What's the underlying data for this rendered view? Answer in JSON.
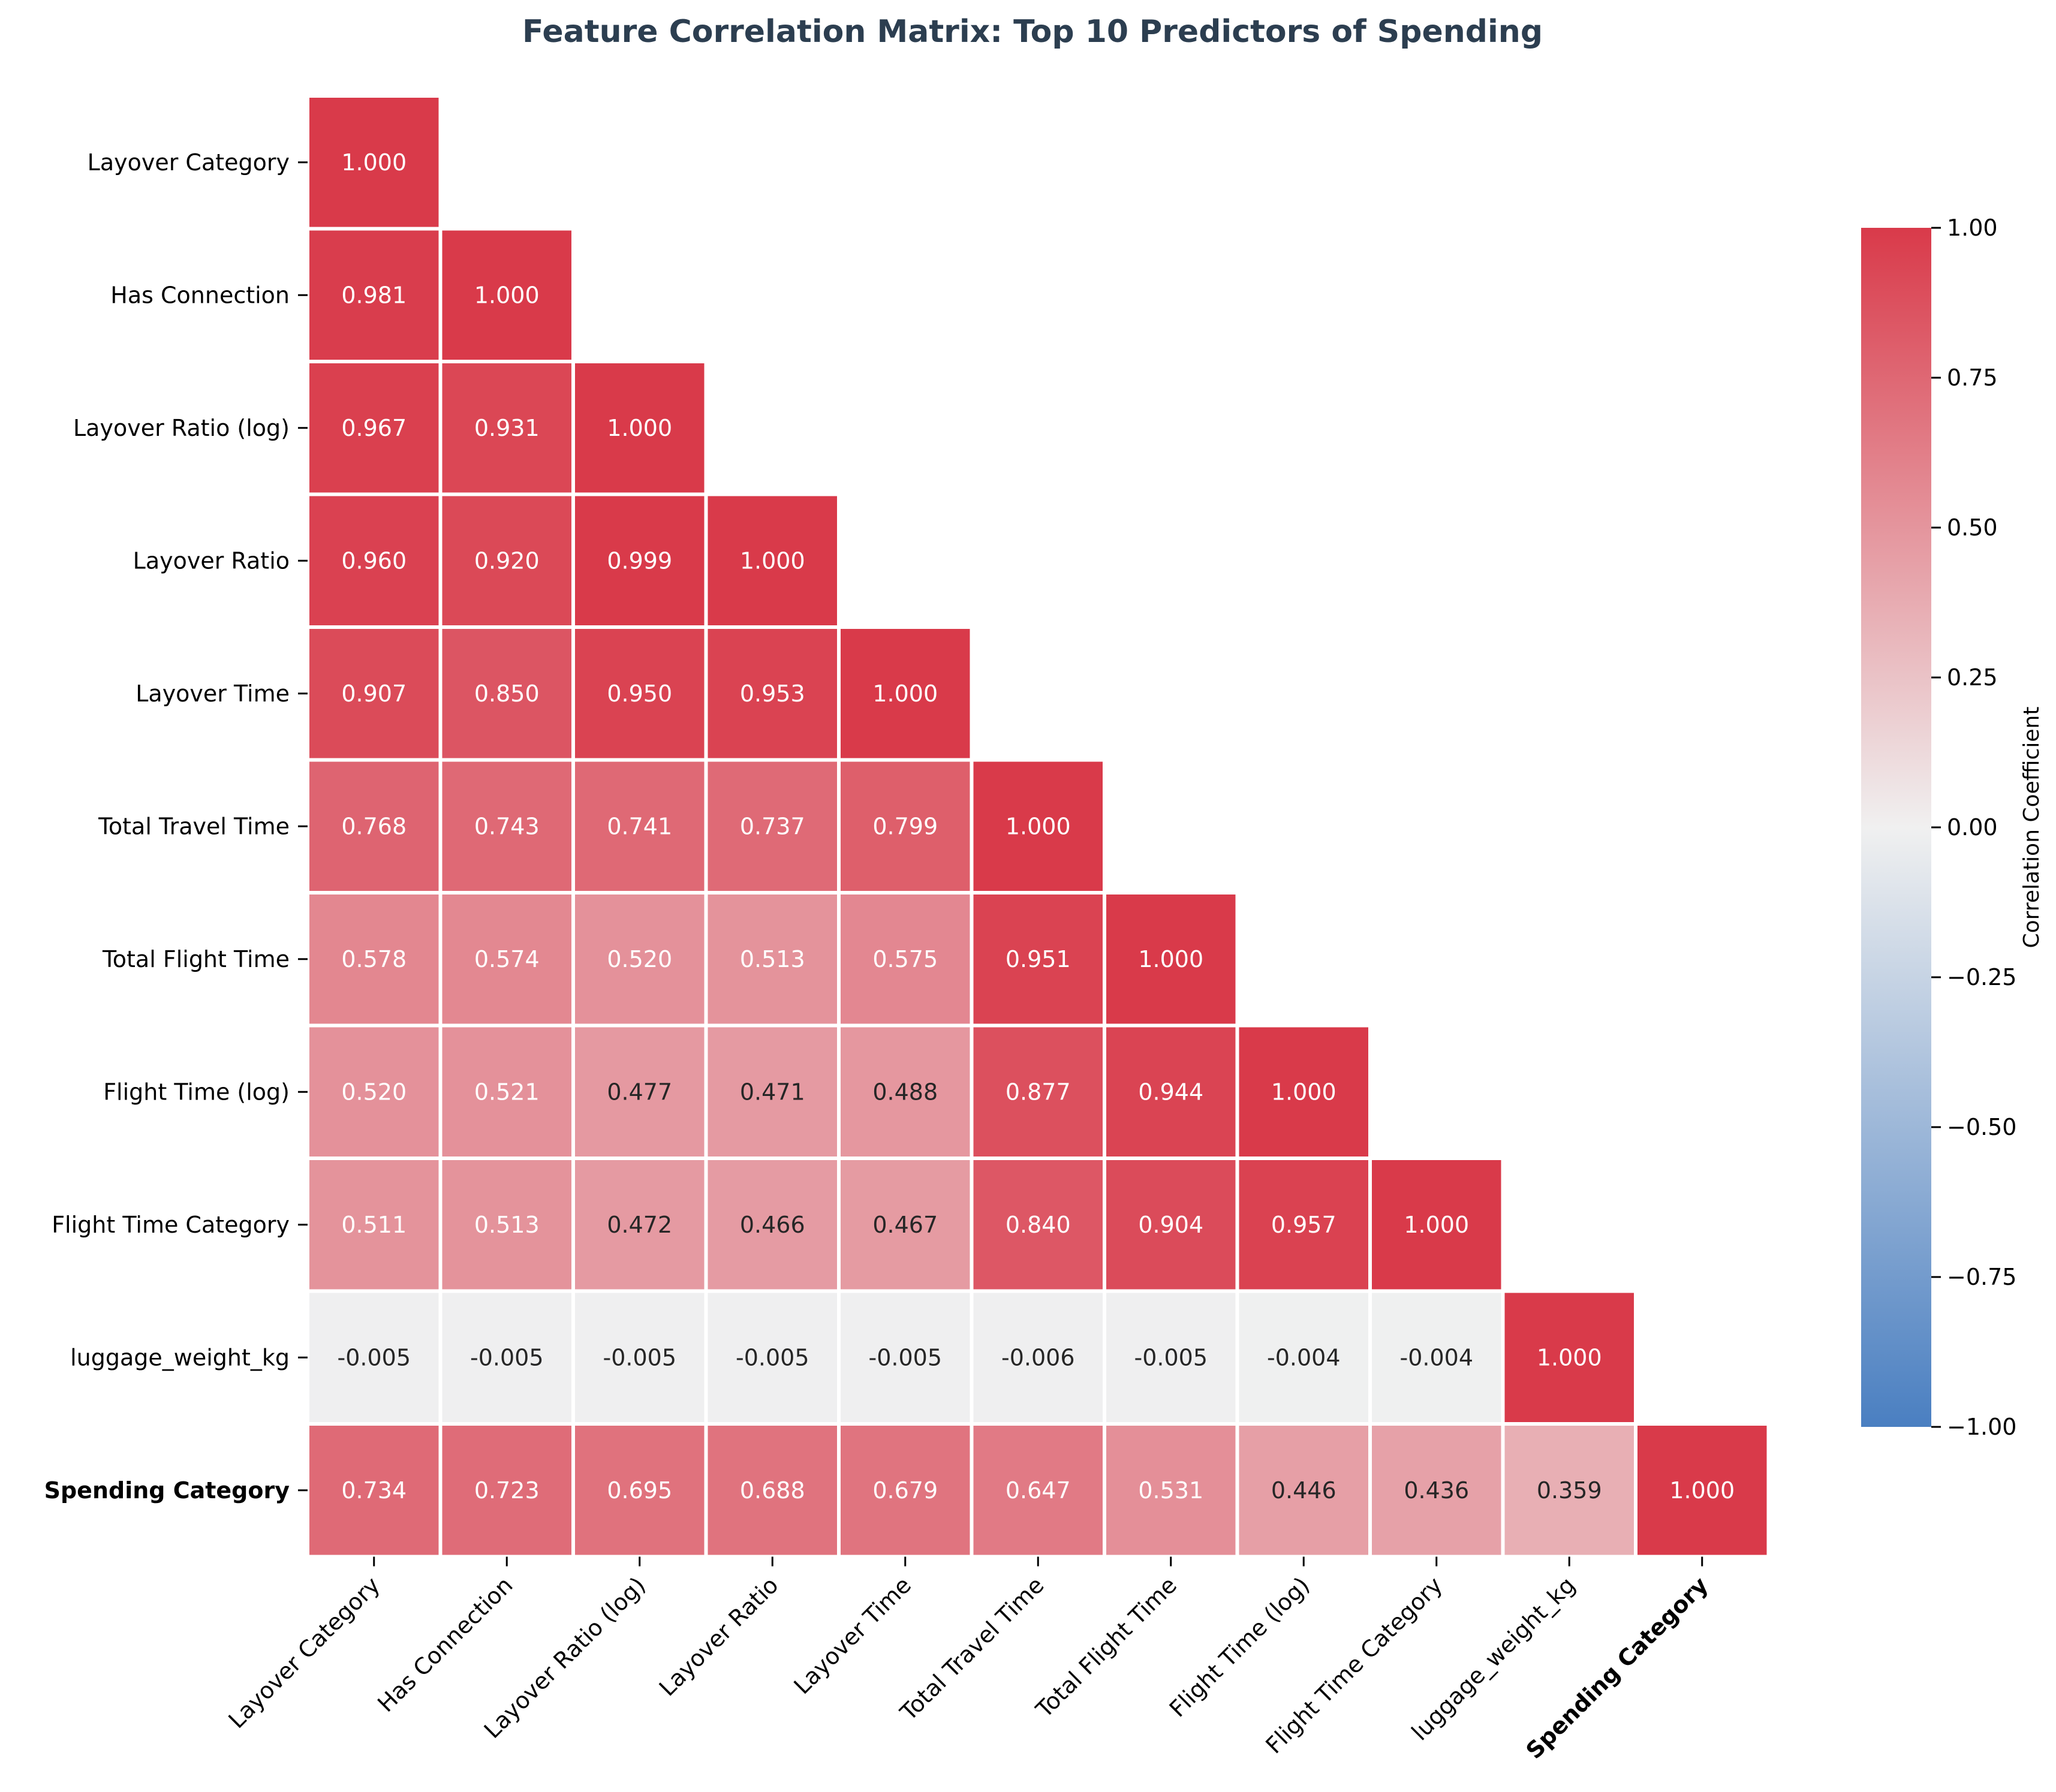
{
  "chart_data": {
    "type": "heatmap",
    "title": "Feature Correlation Matrix: Top 10 Predictors of Spending",
    "labels": [
      "Layover Category",
      "Has Connection",
      "Layover Ratio (log)",
      "Layover Ratio",
      "Layover Time",
      "Total Travel Time",
      "Total Flight Time",
      "Flight Time (log)",
      "Flight Time Category",
      "luggage_weight_kg",
      "Spending Category"
    ],
    "highlight_label": "Spending Category",
    "highlight_color": "#7fb800",
    "matrix_lower": [
      [
        "1.000"
      ],
      [
        "0.981",
        "1.000"
      ],
      [
        "0.967",
        "0.931",
        "1.000"
      ],
      [
        "0.960",
        "0.920",
        "0.999",
        "1.000"
      ],
      [
        "0.907",
        "0.850",
        "0.950",
        "0.953",
        "1.000"
      ],
      [
        "0.768",
        "0.743",
        "0.741",
        "0.737",
        "0.799",
        "1.000"
      ],
      [
        "0.578",
        "0.574",
        "0.520",
        "0.513",
        "0.575",
        "0.951",
        "1.000"
      ],
      [
        "0.520",
        "0.521",
        "0.477",
        "0.471",
        "0.488",
        "0.877",
        "0.944",
        "1.000"
      ],
      [
        "0.511",
        "0.513",
        "0.472",
        "0.466",
        "0.467",
        "0.840",
        "0.904",
        "0.957",
        "1.000"
      ],
      [
        "-0.005",
        "-0.005",
        "-0.005",
        "-0.005",
        "-0.005",
        "-0.006",
        "-0.005",
        "-0.004",
        "-0.004",
        "1.000"
      ],
      [
        "0.734",
        "0.723",
        "0.695",
        "0.688",
        "0.679",
        "0.647",
        "0.531",
        "0.446",
        "0.436",
        "0.359",
        "1.000"
      ]
    ],
    "mask": "upper-triangle",
    "colorbar": {
      "label": "Correlation Coefficient",
      "range": [
        -1.0,
        1.0
      ],
      "ticks": [
        "1.00",
        "0.75",
        "0.50",
        "0.25",
        "0.00",
        "−0.25",
        "−0.50",
        "−0.75",
        "−1.00"
      ],
      "colors": {
        "low": "#4a7fc1",
        "mid": "#f0f0f0",
        "high": "#d93a4a"
      }
    }
  }
}
